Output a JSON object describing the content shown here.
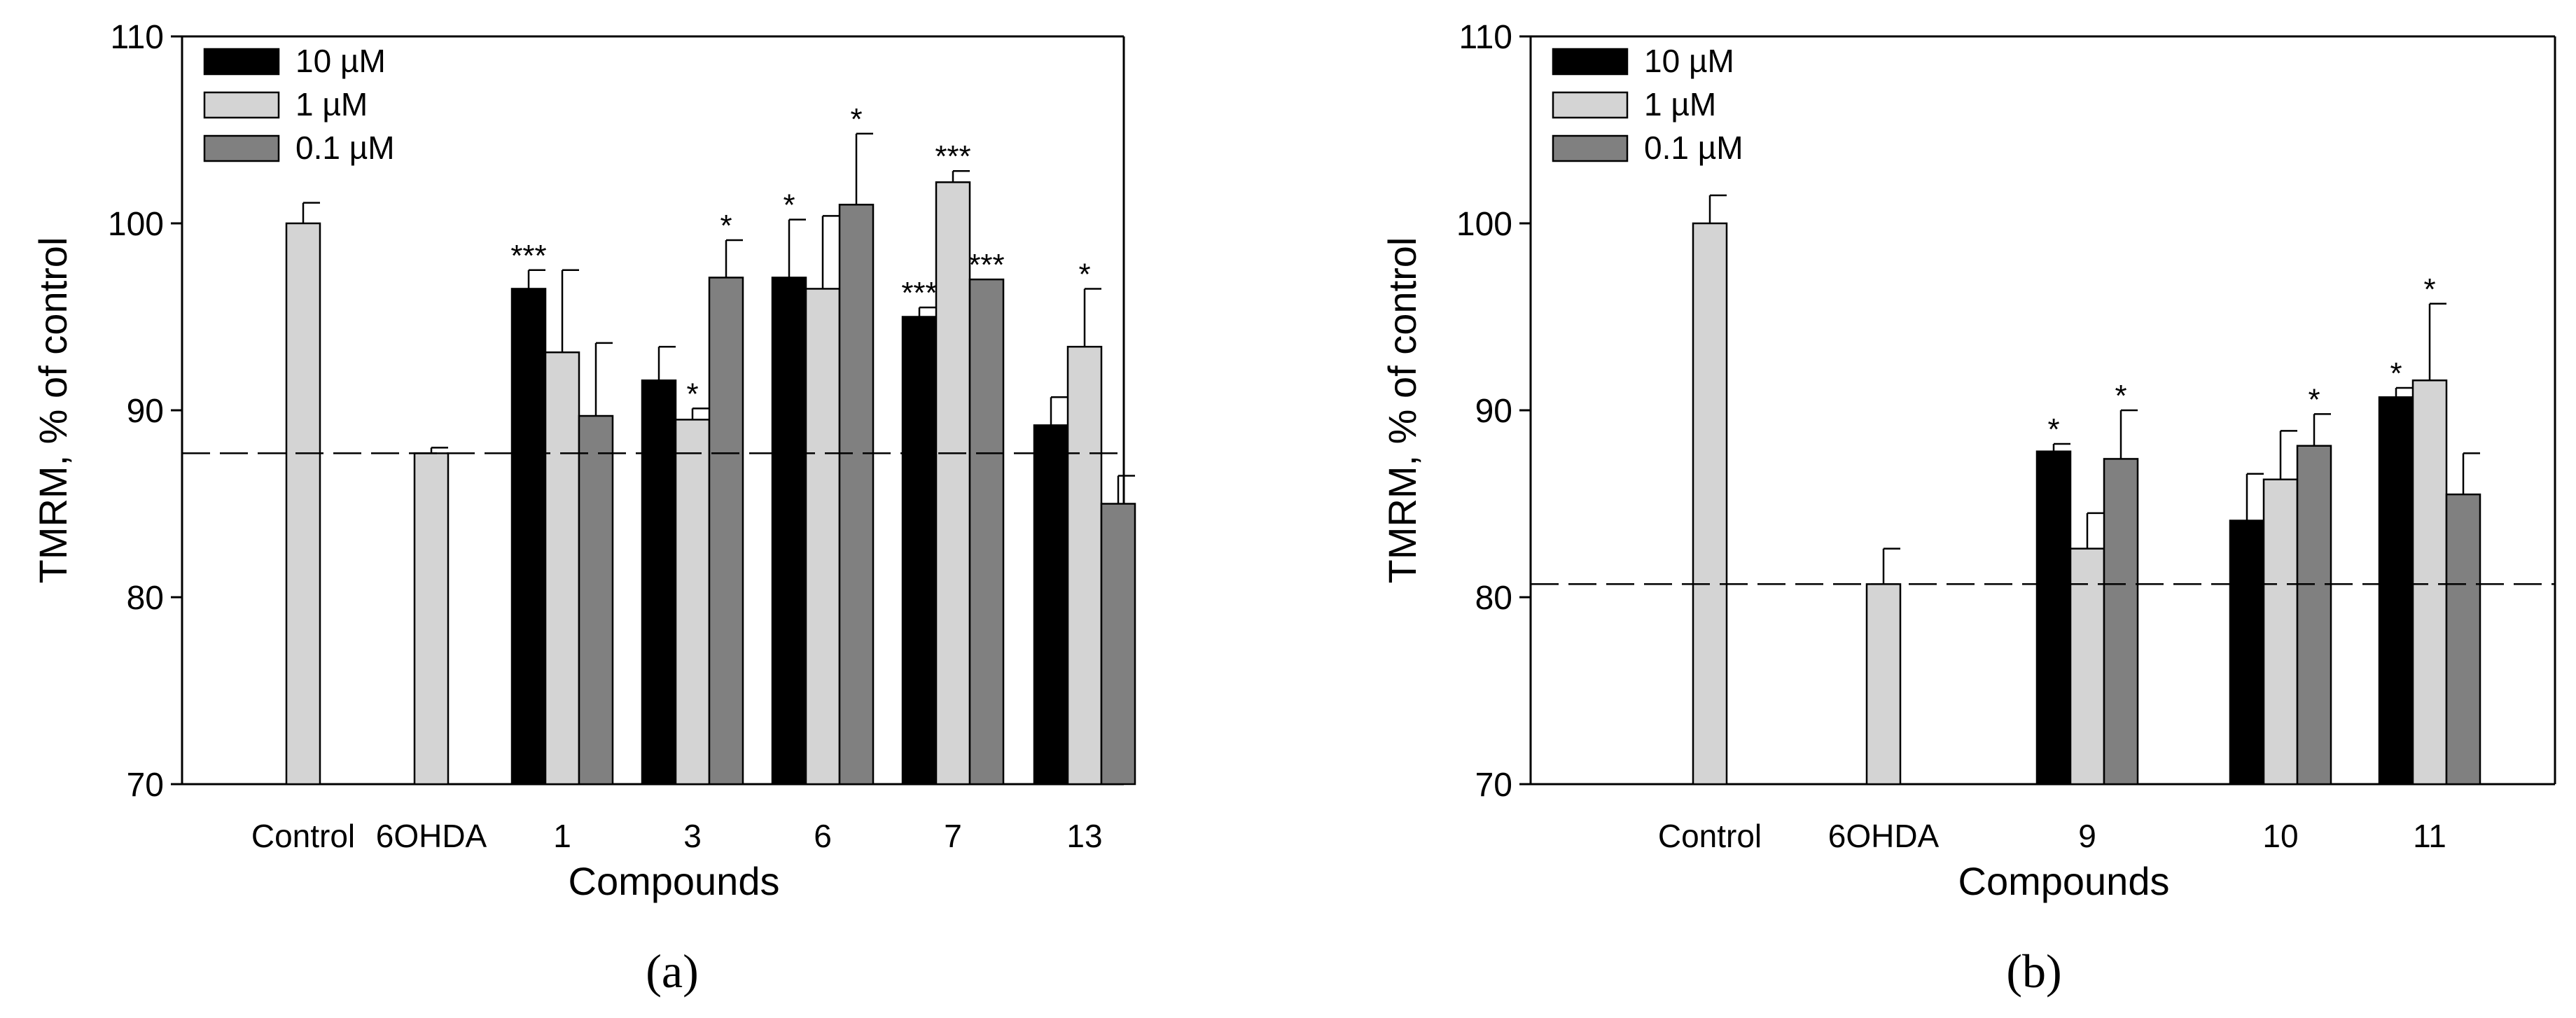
{
  "colors": {
    "10 µM": "#000000",
    "1 µM": "#d4d4d4",
    "0.1 µM": "#808080",
    "axis": "#000000"
  },
  "chart_data": [
    {
      "type": "bar",
      "panel_label": "(a)",
      "xlabel": "Compounds",
      "ylabel": "TMRM, % of control",
      "ylim": [
        70,
        110
      ],
      "yticks": [
        70,
        80,
        90,
        100,
        110
      ],
      "legend": {
        "position": "top-left",
        "entries": [
          "10 µM",
          "1 µM",
          "0.1 µM"
        ]
      },
      "reference_line": {
        "y": 87.7,
        "style": "dashed"
      },
      "groups": [
        {
          "label": "Control",
          "bars": [
            {
              "series": "1 µM",
              "value": 100.0,
              "error": 1.1,
              "sig": ""
            }
          ]
        },
        {
          "label": "6OHDA",
          "bars": [
            {
              "series": "1 µM",
              "value": 87.7,
              "error": 0.3,
              "sig": ""
            }
          ]
        },
        {
          "label": "1",
          "bars": [
            {
              "series": "10 µM",
              "value": 96.5,
              "error": 1.0,
              "sig": "***"
            },
            {
              "series": "1 µM",
              "value": 93.1,
              "error": 4.4,
              "sig": ""
            },
            {
              "series": "0.1 µM",
              "value": 89.7,
              "error": 3.9,
              "sig": ""
            }
          ]
        },
        {
          "label": "3",
          "bars": [
            {
              "series": "10 µM",
              "value": 91.6,
              "error": 1.8,
              "sig": ""
            },
            {
              "series": "1 µM",
              "value": 89.5,
              "error": 0.6,
              "sig": "*"
            },
            {
              "series": "0.1 µM",
              "value": 97.1,
              "error": 2.0,
              "sig": "*"
            }
          ]
        },
        {
          "label": "6",
          "bars": [
            {
              "series": "10 µM",
              "value": 97.1,
              "error": 3.1,
              "sig": "*"
            },
            {
              "series": "1 µM",
              "value": 96.5,
              "error": 3.9,
              "sig": ""
            },
            {
              "series": "0.1 µM",
              "value": 101.0,
              "error": 3.8,
              "sig": "*"
            }
          ]
        },
        {
          "label": "7",
          "bars": [
            {
              "series": "10 µM",
              "value": 95.0,
              "error": 0.5,
              "sig": "***"
            },
            {
              "series": "1 µM",
              "value": 102.2,
              "error": 0.6,
              "sig": "***"
            },
            {
              "series": "0.1 µM",
              "value": 97.0,
              "error": 0.0,
              "sig": "***"
            }
          ]
        },
        {
          "label": "13",
          "bars": [
            {
              "series": "10 µM",
              "value": 89.2,
              "error": 1.5,
              "sig": ""
            },
            {
              "series": "1 µM",
              "value": 93.4,
              "error": 3.1,
              "sig": "*"
            },
            {
              "series": "0.1 µM",
              "value": 85.0,
              "error": 1.5,
              "sig": ""
            }
          ]
        }
      ]
    },
    {
      "type": "bar",
      "panel_label": "(b)",
      "xlabel": "Compounds",
      "ylabel": "TMRM, % of control",
      "ylim": [
        70,
        110
      ],
      "yticks": [
        70,
        80,
        90,
        100,
        110
      ],
      "legend": {
        "position": "top-left",
        "entries": [
          "10 µM",
          "1 µM",
          "0.1 µM"
        ]
      },
      "reference_line": {
        "y": 80.7,
        "style": "dashed"
      },
      "groups": [
        {
          "label": "Control",
          "bars": [
            {
              "series": "1 µM",
              "value": 100.0,
              "error": 1.5,
              "sig": ""
            }
          ]
        },
        {
          "label": "6OHDA",
          "bars": [
            {
              "series": "1 µM",
              "value": 80.7,
              "error": 1.9,
              "sig": ""
            }
          ]
        },
        {
          "label": "9",
          "bars": [
            {
              "series": "10 µM",
              "value": 87.8,
              "error": 0.4,
              "sig": "*"
            },
            {
              "series": "1 µM",
              "value": 82.6,
              "error": 1.9,
              "sig": ""
            },
            {
              "series": "0.1 µM",
              "value": 87.4,
              "error": 2.6,
              "sig": "*"
            }
          ]
        },
        {
          "label": "10",
          "bars": [
            {
              "series": "10 µM",
              "value": 84.1,
              "error": 2.5,
              "sig": ""
            },
            {
              "series": "1 µM",
              "value": 86.3,
              "error": 2.6,
              "sig": ""
            },
            {
              "series": "0.1 µM",
              "value": 88.1,
              "error": 1.7,
              "sig": "*"
            }
          ]
        },
        {
          "label": "11",
          "bars": [
            {
              "series": "10 µM",
              "value": 90.7,
              "error": 0.5,
              "sig": "*"
            },
            {
              "series": "1 µM",
              "value": 91.6,
              "error": 4.1,
              "sig": "*"
            },
            {
              "series": "0.1 µM",
              "value": 85.5,
              "error": 2.2,
              "sig": ""
            }
          ]
        }
      ]
    }
  ]
}
